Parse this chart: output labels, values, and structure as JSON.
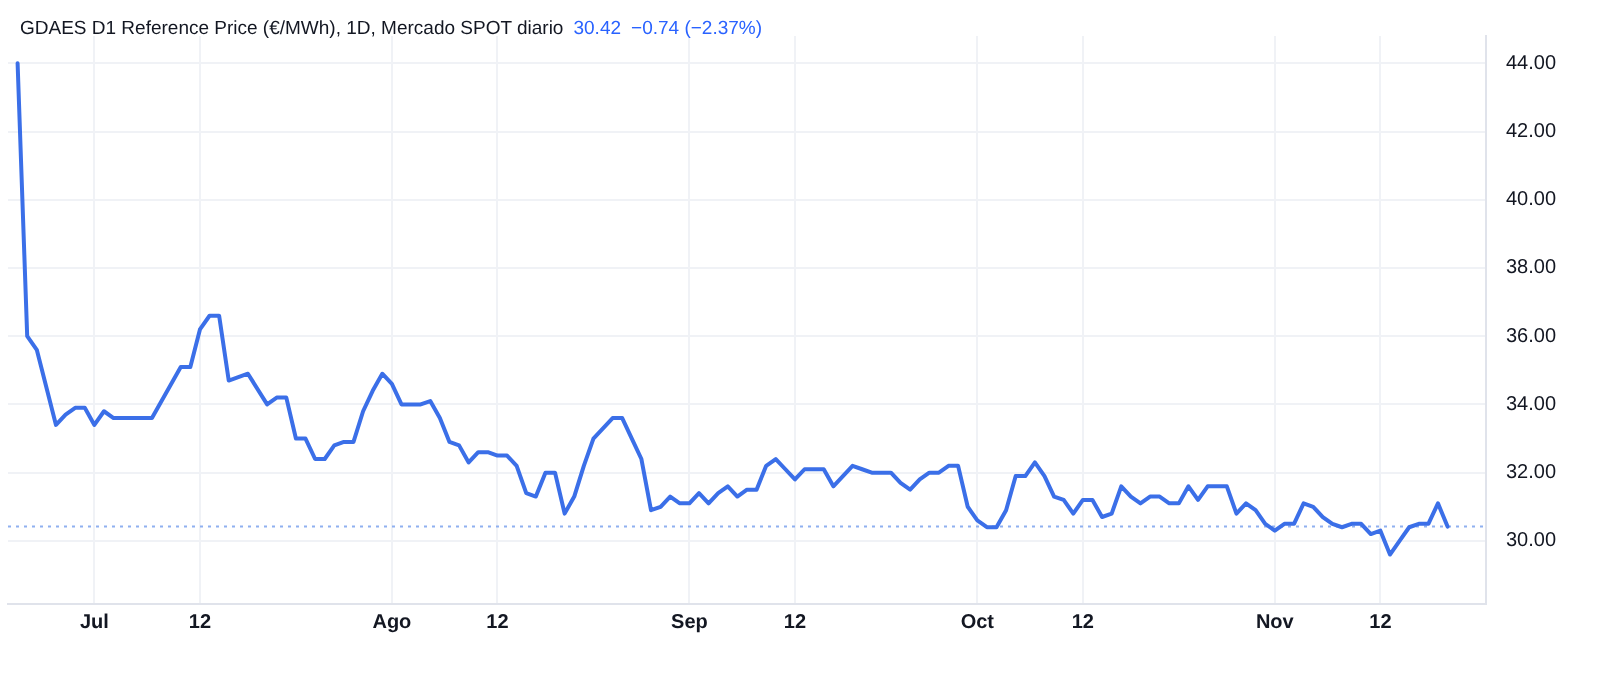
{
  "chart_data": {
    "type": "line",
    "title": "GDAES D1 Reference Price (€/MWh), 1D, Mercado SPOT diario",
    "annotations": [
      "30.42",
      "−0.74 (−2.37%)"
    ],
    "x": [
      "--06-23",
      "--06-24",
      "--06-25",
      "--06-27",
      "--06-28",
      "--06-29",
      "--06-30",
      "--07-01",
      "--07-02",
      "--07-03",
      "--07-05",
      "--07-06",
      "--07-07",
      "--07-10",
      "--07-11",
      "--07-12",
      "--07-13",
      "--07-14",
      "--07-15",
      "--07-17",
      "--07-19",
      "--07-20",
      "--07-21",
      "--07-22",
      "--07-23",
      "--07-24",
      "--07-25",
      "--07-26",
      "--07-27",
      "--07-28",
      "--07-29",
      "--07-30",
      "--07-31",
      "--08-01",
      "--08-02",
      "--08-03",
      "--08-04",
      "--08-05",
      "--08-06",
      "--08-07",
      "--08-08",
      "--08-09",
      "--08-10",
      "--08-11",
      "--08-12",
      "--08-13",
      "--08-14",
      "--08-15",
      "--08-16",
      "--08-17",
      "--08-18",
      "--08-19",
      "--08-20",
      "--08-21",
      "--08-22",
      "--08-23",
      "--08-24",
      "--08-25",
      "--08-26",
      "--08-27",
      "--08-28",
      "--08-29",
      "--08-30",
      "--08-31",
      "--09-01",
      "--09-02",
      "--09-03",
      "--09-04",
      "--09-05",
      "--09-06",
      "--09-07",
      "--09-08",
      "--09-09",
      "--09-10",
      "--09-11",
      "--09-12",
      "--09-13",
      "--09-14",
      "--09-15",
      "--09-16",
      "--09-17",
      "--09-18",
      "--09-19",
      "--09-20",
      "--09-21",
      "--09-22",
      "--09-23",
      "--09-24",
      "--09-25",
      "--09-26",
      "--09-27",
      "--09-28",
      "--09-29",
      "--09-30",
      "--10-01",
      "--10-02",
      "--10-03",
      "--10-04",
      "--10-05",
      "--10-06",
      "--10-07",
      "--10-08",
      "--10-09",
      "--10-10",
      "--10-11",
      "--10-12",
      "--10-13",
      "--10-14",
      "--10-15",
      "--10-16",
      "--10-17",
      "--10-18",
      "--10-19",
      "--10-20",
      "--10-21",
      "--10-22",
      "--10-23",
      "--10-24",
      "--10-25",
      "--10-26",
      "--10-27",
      "--10-28",
      "--10-29",
      "--10-30",
      "--10-31",
      "--11-01",
      "--11-02",
      "--11-03",
      "--11-04",
      "--11-05",
      "--11-06",
      "--11-07",
      "--11-08",
      "--11-09",
      "--11-10",
      "--11-11",
      "--11-12",
      "--11-13",
      "--11-14",
      "--11-15",
      "--11-16",
      "--11-17",
      "--11-18",
      "--11-19"
    ],
    "series": [
      {
        "color": "#3b6fe8",
        "values": [
          44.0,
          36.0,
          35.6,
          33.4,
          33.7,
          33.9,
          33.9,
          33.4,
          33.8,
          33.6,
          33.6,
          33.6,
          33.6,
          35.1,
          35.1,
          36.2,
          36.6,
          36.6,
          34.7,
          34.9,
          34.0,
          34.2,
          34.2,
          33.0,
          33.0,
          32.4,
          32.4,
          32.8,
          32.9,
          32.9,
          33.8,
          34.4,
          34.9,
          34.6,
          34.0,
          34.0,
          34.0,
          34.1,
          33.6,
          32.9,
          32.8,
          32.3,
          32.6,
          32.6,
          32.5,
          32.5,
          32.2,
          31.4,
          31.3,
          32.0,
          32.0,
          30.8,
          31.3,
          32.2,
          33.0,
          33.3,
          33.6,
          33.6,
          33.0,
          32.4,
          30.9,
          31.0,
          31.3,
          31.1,
          31.1,
          31.4,
          31.1,
          31.4,
          31.6,
          31.3,
          31.5,
          31.5,
          32.2,
          32.4,
          32.1,
          31.8,
          32.1,
          32.1,
          32.1,
          31.6,
          31.9,
          32.2,
          32.1,
          32.0,
          32.0,
          32.0,
          31.7,
          31.5,
          31.8,
          32.0,
          32.0,
          32.2,
          32.2,
          31.0,
          30.6,
          30.4,
          30.4,
          30.9,
          31.9,
          31.9,
          32.3,
          31.9,
          31.3,
          31.2,
          30.8,
          31.2,
          31.2,
          30.7,
          30.8,
          31.6,
          31.3,
          31.1,
          31.3,
          31.3,
          31.1,
          31.1,
          31.6,
          31.2,
          31.6,
          31.6,
          31.6,
          30.8,
          31.1,
          30.9,
          30.5,
          30.3,
          30.5,
          30.5,
          31.1,
          31.0,
          30.7,
          30.5,
          30.4,
          30.5,
          30.5,
          30.2,
          30.3,
          29.6,
          30.0,
          30.4,
          30.5,
          30.5,
          31.1,
          30.42
        ]
      }
    ],
    "xlim": [
      "--06-22",
      "--11-23"
    ],
    "xticks": [
      {
        "value": "--07-01",
        "label": "Jul"
      },
      {
        "value": "--07-12",
        "label": "12"
      },
      {
        "value": "--08-01",
        "label": "Ago"
      },
      {
        "value": "--08-12",
        "label": "12"
      },
      {
        "value": "--09-01",
        "label": "Sep"
      },
      {
        "value": "--09-12",
        "label": "12"
      },
      {
        "value": "--10-01",
        "label": "Oct"
      },
      {
        "value": "--10-12",
        "label": "12"
      },
      {
        "value": "--11-01",
        "label": "Nov"
      },
      {
        "value": "--11-12",
        "label": "12"
      }
    ],
    "ylim": [
      28.15,
      44.8
    ],
    "yticks": [
      {
        "value": 30,
        "label": "30.00"
      },
      {
        "value": 32,
        "label": "32.00"
      },
      {
        "value": 34,
        "label": "34.00"
      },
      {
        "value": 36,
        "label": "36.00"
      },
      {
        "value": 38,
        "label": "38.00"
      },
      {
        "value": 40,
        "label": "40.00"
      },
      {
        "value": 42,
        "label": "42.00"
      },
      {
        "value": 44,
        "label": "44.00"
      }
    ],
    "ref_lines": [
      {
        "axis": "y",
        "value": 30.42,
        "color": "#8fb0f0",
        "line_style": "dotted"
      }
    ],
    "grid": true,
    "marker": "none",
    "line_style": "solid",
    "legend": false
  }
}
